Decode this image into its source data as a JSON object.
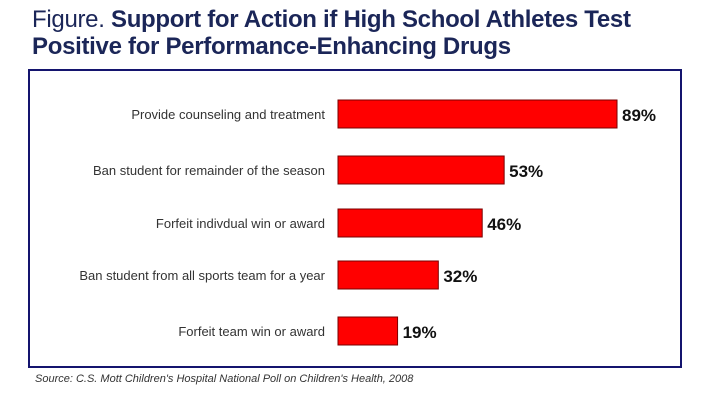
{
  "title": {
    "prefix": "Figure.",
    "main": "Support for Action if High School Athletes Test Positive for Performance-Enhancing Drugs"
  },
  "source": "Source: C.S. Mott Children's Hospital National Poll on Children's Health, 2008",
  "colors": {
    "bar": "#ff0000",
    "bar_border": "#7a0000",
    "title": "#1b2658",
    "frame": "#14146e"
  },
  "chart_data": {
    "type": "bar",
    "orientation": "horizontal",
    "title": "Support for Action if High School Athletes Test Positive for Performance-Enhancing Drugs",
    "categories": [
      "Provide counseling and treatment",
      "Ban student for remainder of the season",
      "Forfeit indivdual win or award",
      "Ban student from all sports team for a year",
      "Forfeit team win or award"
    ],
    "values": [
      89,
      53,
      46,
      32,
      19
    ],
    "labels": [
      "89%",
      "53%",
      "46%",
      "32%",
      "19%"
    ],
    "xlabel": "",
    "ylabel": "",
    "xlim": [
      0,
      100
    ],
    "grid": false
  }
}
